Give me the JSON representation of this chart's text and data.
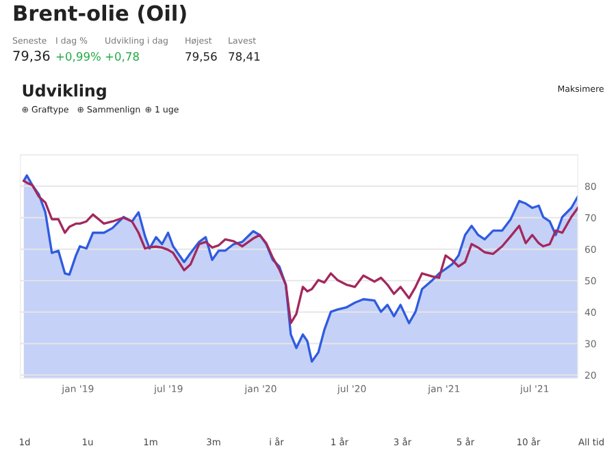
{
  "chart_data": {
    "type": "line",
    "title": "Brent-olie (Oil)",
    "subtitle": "Udvikling",
    "annotations": [
      "Seneste",
      "79,36",
      "I dag %",
      "+0,99%",
      "Udvikling i dag",
      "+0,78",
      "Højest",
      "79,56",
      "Lavest",
      "78,41",
      "Maksimere",
      "⊕ Graftype",
      "⊕ Sammenlign",
      "⊕ 1 uge",
      "1d",
      "1u",
      "1m",
      "3m",
      "i år",
      "1 år",
      "3 år",
      "5 år",
      "10 år",
      "All tid"
    ],
    "x": [
      "2018-09-15",
      "2018-09-21",
      "2018-10-02",
      "2018-10-15",
      "2018-10-28",
      "2018-11-10",
      "2018-11-23",
      "2018-12-06",
      "2018-12-15",
      "2018-12-28",
      "2019-01-05",
      "2019-01-18",
      "2019-01-31",
      "2019-02-22",
      "2019-03-11",
      "2019-04-02",
      "2019-04-19",
      "2019-05-02",
      "2019-05-15",
      "2019-05-24",
      "2019-06-06",
      "2019-06-18",
      "2019-06-30",
      "2019-07-10",
      "2019-08-01",
      "2019-08-14",
      "2019-08-31",
      "2019-09-13",
      "2019-09-26",
      "2019-10-09",
      "2019-10-22",
      "2019-11-08",
      "2019-11-25",
      "2019-12-17",
      "2019-12-30",
      "2020-01-12",
      "2020-01-25",
      "2020-02-07",
      "2020-02-20",
      "2020-03-01",
      "2020-03-12",
      "2020-03-25",
      "2020-04-03",
      "2020-04-12",
      "2020-04-25",
      "2020-05-07",
      "2020-05-20",
      "2020-06-02",
      "2020-06-20",
      "2020-07-07",
      "2020-07-24",
      "2020-08-15",
      "2020-08-28",
      "2020-09-10",
      "2020-09-23",
      "2020-10-06",
      "2020-10-23",
      "2020-11-05",
      "2020-11-18",
      "2020-12-09",
      "2020-12-22",
      "2021-01-04",
      "2021-01-17",
      "2021-01-30",
      "2021-02-12",
      "2021-02-25",
      "2021-03-10",
      "2021-03-23",
      "2021-04-09",
      "2021-04-27",
      "2021-05-14",
      "2021-05-31",
      "2021-06-13",
      "2021-06-26",
      "2021-07-09",
      "2021-07-18",
      "2021-07-31",
      "2021-08-12",
      "2021-08-25",
      "2021-09-12",
      "2021-09-25"
    ],
    "series": [
      {
        "type": "area",
        "color": "#2f5be0",
        "values": [
          81.7,
          83.4,
          80.3,
          77.4,
          71.7,
          58.8,
          59.5,
          52.3,
          51.9,
          58.0,
          60.9,
          60.2,
          65.2,
          65.2,
          66.7,
          70.2,
          68.8,
          71.7,
          64.1,
          60.2,
          63.8,
          61.6,
          65.2,
          60.9,
          55.9,
          58.8,
          62.3,
          63.8,
          56.6,
          59.5,
          59.5,
          61.6,
          62.3,
          65.7,
          64.5,
          61.6,
          56.6,
          54.5,
          48.7,
          32.9,
          28.6,
          32.9,
          30.8,
          24.3,
          27.2,
          34.4,
          40.1,
          40.8,
          41.5,
          43.0,
          44.1,
          43.7,
          40.1,
          42.3,
          38.7,
          42.3,
          36.5,
          40.1,
          47.3,
          50.2,
          52.3,
          53.7,
          55.2,
          58.0,
          64.5,
          67.4,
          64.5,
          63.1,
          65.9,
          65.9,
          69.5,
          75.3,
          74.5,
          73.1,
          73.8,
          70.2,
          68.8,
          64.5,
          70.2,
          73.1,
          76.7
        ]
      },
      {
        "color": "#a3285c",
        "values": [
          81.7,
          81.1,
          80.3,
          76.7,
          74.8,
          69.5,
          69.5,
          65.2,
          67.1,
          68.1,
          68.1,
          68.8,
          71.0,
          68.1,
          68.8,
          70.0,
          68.8,
          65.2,
          60.2,
          60.6,
          60.8,
          60.5,
          59.8,
          58.8,
          53.3,
          55.2,
          61.6,
          62.3,
          60.5,
          61.2,
          63.1,
          62.5,
          60.9,
          63.4,
          64.5,
          61.9,
          57.3,
          53.6,
          48.7,
          36.5,
          39.4,
          48.0,
          46.6,
          47.3,
          50.2,
          49.4,
          52.3,
          50.2,
          48.7,
          48.0,
          51.6,
          49.7,
          50.9,
          48.7,
          45.8,
          48.0,
          44.4,
          48.0,
          52.3,
          51.3,
          50.9,
          58.0,
          56.5,
          54.5,
          55.9,
          61.6,
          60.5,
          59.0,
          58.5,
          60.9,
          64.1,
          67.4,
          61.9,
          64.5,
          61.9,
          60.9,
          61.6,
          65.9,
          65.2,
          70.2,
          73.1
        ]
      }
    ],
    "xlim": [
      "2018-09-08",
      "2021-09-25"
    ],
    "xticks": [
      {
        "value": "2019-01-01",
        "label": "jan '19"
      },
      {
        "value": "2019-07-01",
        "label": "jul '19"
      },
      {
        "value": "2020-01-01",
        "label": "jan '20"
      },
      {
        "value": "2020-07-01",
        "label": "jul '20"
      },
      {
        "value": "2021-01-01",
        "label": "jan '21"
      },
      {
        "value": "2021-07-01",
        "label": "jul '21"
      }
    ],
    "ylim": [
      19,
      90
    ],
    "yticks": [
      20,
      30,
      40,
      50,
      60,
      70,
      80,
      {
        "value": 90,
        "label": null
      }
    ],
    "grid": "y",
    "legend": false
  }
}
